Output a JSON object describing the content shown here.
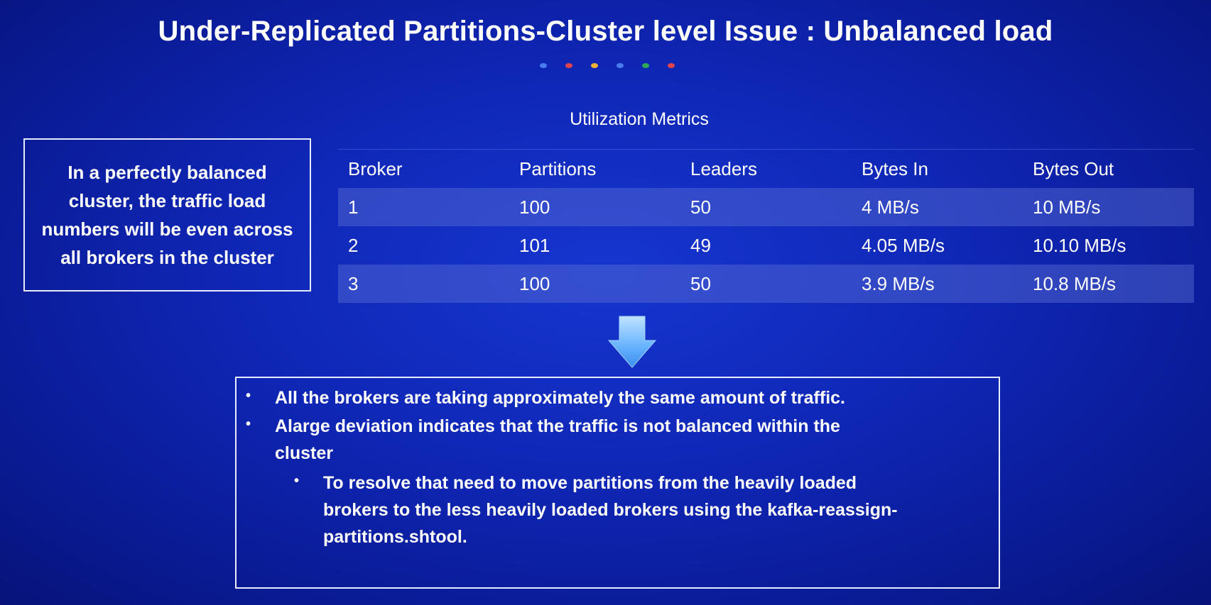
{
  "title": "Under-Replicated Partitions-Cluster level Issue : Unbalanced load",
  "dot_colors": [
    "#4a7cf0",
    "#e0444c",
    "#f2b233",
    "#4a7cf0",
    "#2fa85a",
    "#e0444c"
  ],
  "metrics_title": "Utilization Metrics",
  "left_box_text": "In a perfectly balanced cluster, the traffic load numbers will be even across all brokers in the cluster",
  "table": {
    "headers": [
      "Broker",
      "Partitions",
      "Leaders",
      "Bytes In",
      "Bytes Out"
    ],
    "rows": [
      [
        "1",
        "100",
        "50",
        "4 MB/s",
        "10 MB/s"
      ],
      [
        "2",
        "101",
        "49",
        "4.05 MB/s",
        "10.10 MB/s"
      ],
      [
        "3",
        "100",
        "50",
        "3.9 MB/s",
        "10.8 MB/s"
      ]
    ]
  },
  "arrow_icon": "down-arrow-icon",
  "bullets": {
    "b1": "All the brokers are taking approximately the same amount of traffic.",
    "b2_line1": "Alarge deviation indicates that the traffic is not balanced within the",
    "b2_line2": "cluster",
    "b3_line1": "To resolve that need to move partitions from the heavily loaded",
    "b3_line2": "brokers to the less heavily loaded brokers using the kafka-reassign-",
    "b3_line3": "partitions.shtool.",
    "marker": "•"
  }
}
